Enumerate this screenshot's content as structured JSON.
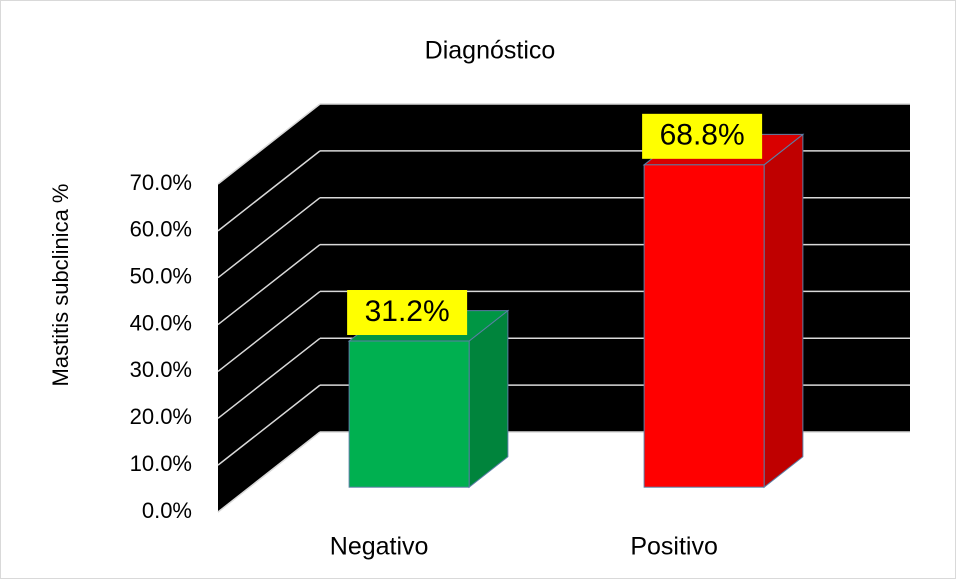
{
  "chart_data": {
    "type": "bar3d",
    "title": "Diagnóstico",
    "y_label": "Mastitis subclinica %",
    "categories": [
      "Negativo",
      "Positivo"
    ],
    "values": [
      31.2,
      68.8
    ],
    "value_labels": [
      "31.2%",
      "68.8%"
    ],
    "colors": [
      "#00b050",
      "#ff0000"
    ],
    "ylim": [
      0,
      70
    ],
    "yticks": [
      {
        "value": 0,
        "label": "0.0%"
      },
      {
        "value": 10,
        "label": "10.0%"
      },
      {
        "value": 20,
        "label": "20.0%"
      },
      {
        "value": 30,
        "label": "30.0%"
      },
      {
        "value": 40,
        "label": "40.0%"
      },
      {
        "value": 50,
        "label": "50.0%"
      },
      {
        "value": 60,
        "label": "60.0%"
      },
      {
        "value": 70,
        "label": "70.0%"
      }
    ],
    "grid": true
  }
}
